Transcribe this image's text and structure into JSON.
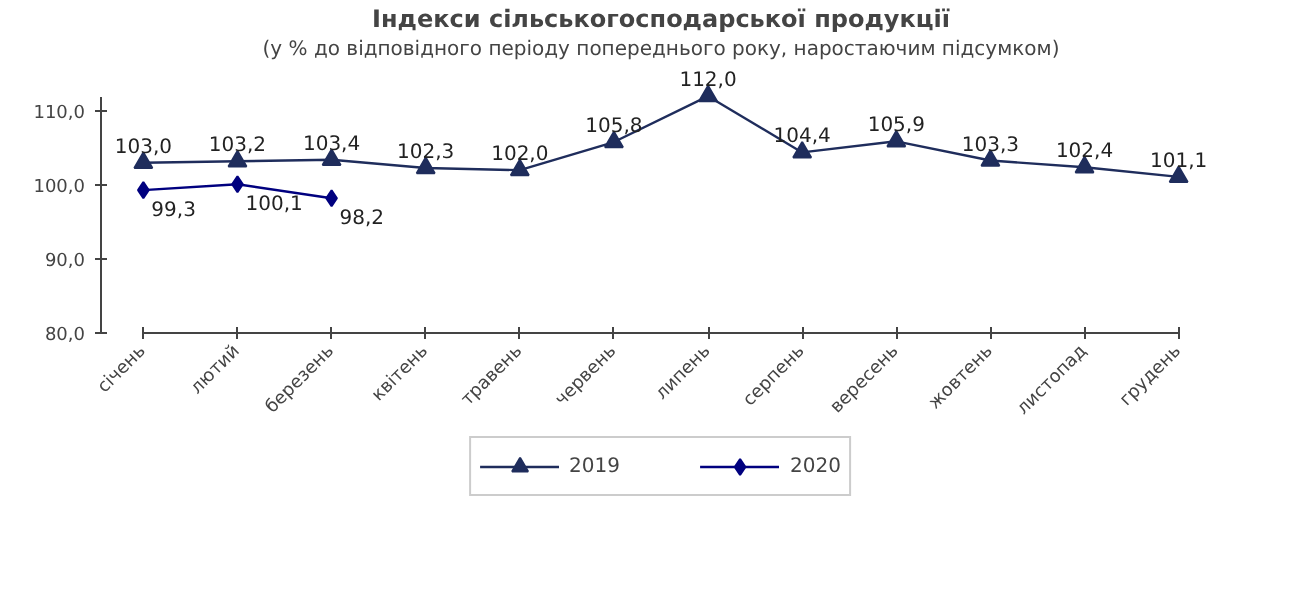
{
  "chart_data": {
    "type": "line",
    "title": "Індекси сільськогосподарської продукції",
    "subtitle": "(у % до відповідного періоду попереднього року, наростаючим підсумком)",
    "categories": [
      "січень",
      "лютий",
      "березень",
      "квітень",
      "травень",
      "червень",
      "липень",
      "серпень",
      "вересень",
      "жовтень",
      "листопад",
      "грудень"
    ],
    "series": [
      {
        "name": "2019",
        "color": "#1f2d5c",
        "marker": "triangle",
        "values": [
          103.0,
          103.2,
          103.4,
          102.3,
          102.0,
          105.8,
          112.0,
          104.4,
          105.9,
          103.3,
          102.4,
          101.1
        ],
        "value_labels": [
          "103,0",
          "103,2",
          "103,4",
          "102,3",
          "102,0",
          "105,8",
          "112,0",
          "104,4",
          "105,9",
          "103,3",
          "102,4",
          "101,1"
        ]
      },
      {
        "name": "2020",
        "color": "#00007f",
        "marker": "diamond",
        "values": [
          99.3,
          100.1,
          98.2,
          null,
          null,
          null,
          null,
          null,
          null,
          null,
          null,
          null
        ],
        "value_labels": [
          "99,3",
          "100,1",
          "98,2",
          null,
          null,
          null,
          null,
          null,
          null,
          null,
          null,
          null
        ]
      }
    ],
    "ylim": [
      80,
      112
    ],
    "yticks": [
      {
        "value": 80,
        "label": "80,0"
      },
      {
        "value": 90,
        "label": "90,0"
      },
      {
        "value": 100,
        "label": "100,0"
      },
      {
        "value": 110,
        "label": "110,0"
      }
    ],
    "grid": false,
    "legend": "bottom",
    "line_style": "solid"
  }
}
